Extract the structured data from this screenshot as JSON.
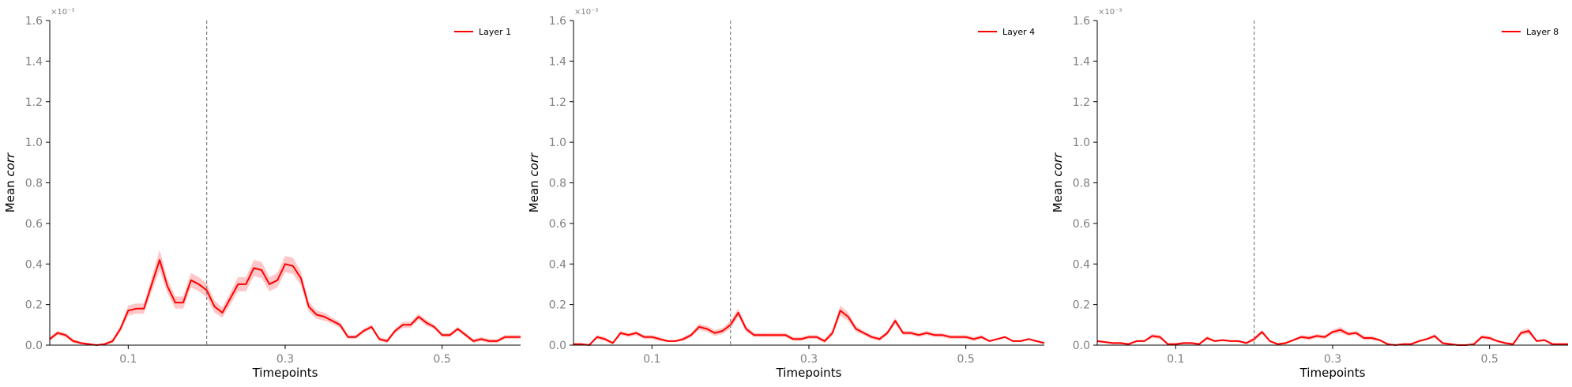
{
  "chart_data": [
    {
      "type": "line",
      "xlabel": "Timepoints",
      "ylabel": "Mean corr",
      "ylabel_prefix": "Mean ",
      "ylabel_italic": "corr",
      "offset_text": "×10⁻³",
      "ylim": [
        0,
        1.6
      ],
      "xlim": [
        0.0,
        0.6
      ],
      "yticks": [
        "0.0",
        "0.2",
        "0.4",
        "0.6",
        "0.8",
        "1.0",
        "1.2",
        "1.4",
        "1.6"
      ],
      "xticks": [
        "0.1",
        "0.3",
        "0.5"
      ],
      "xtick_values": [
        0.1,
        0.3,
        0.5
      ],
      "vline_x": 0.2,
      "legend_position": "top-right",
      "series": [
        {
          "name": "Layer 1",
          "color": "#ff0000",
          "x": [
            0.0,
            0.01,
            0.02,
            0.03,
            0.04,
            0.05,
            0.06,
            0.07,
            0.08,
            0.09,
            0.1,
            0.11,
            0.12,
            0.13,
            0.14,
            0.15,
            0.16,
            0.17,
            0.18,
            0.19,
            0.2,
            0.21,
            0.22,
            0.23,
            0.24,
            0.25,
            0.26,
            0.27,
            0.28,
            0.29,
            0.3,
            0.31,
            0.32,
            0.33,
            0.34,
            0.35,
            0.36,
            0.37,
            0.38,
            0.39,
            0.4,
            0.41,
            0.42,
            0.43,
            0.44,
            0.45,
            0.46,
            0.47,
            0.48,
            0.49,
            0.5,
            0.51,
            0.52,
            0.53,
            0.54,
            0.55,
            0.56,
            0.57,
            0.58,
            0.59,
            0.6
          ],
          "y": [
            0.03,
            0.06,
            0.05,
            0.02,
            0.01,
            0.005,
            0.0,
            0.005,
            0.02,
            0.08,
            0.17,
            0.18,
            0.18,
            0.3,
            0.42,
            0.29,
            0.21,
            0.21,
            0.32,
            0.3,
            0.27,
            0.19,
            0.16,
            0.23,
            0.3,
            0.3,
            0.38,
            0.37,
            0.3,
            0.32,
            0.4,
            0.39,
            0.33,
            0.19,
            0.15,
            0.14,
            0.12,
            0.1,
            0.04,
            0.04,
            0.07,
            0.09,
            0.03,
            0.02,
            0.07,
            0.1,
            0.1,
            0.14,
            0.11,
            0.09,
            0.05,
            0.05,
            0.08,
            0.05,
            0.02,
            0.03,
            0.02,
            0.02,
            0.04,
            0.04,
            0.04
          ],
          "err": [
            0.01,
            0.01,
            0.01,
            0.01,
            0.005,
            0.005,
            0.005,
            0.005,
            0.01,
            0.015,
            0.025,
            0.025,
            0.025,
            0.035,
            0.05,
            0.035,
            0.03,
            0.03,
            0.035,
            0.035,
            0.035,
            0.03,
            0.025,
            0.03,
            0.035,
            0.035,
            0.04,
            0.04,
            0.035,
            0.035,
            0.04,
            0.04,
            0.035,
            0.025,
            0.02,
            0.02,
            0.015,
            0.015,
            0.01,
            0.01,
            0.01,
            0.01,
            0.01,
            0.01,
            0.01,
            0.015,
            0.015,
            0.015,
            0.015,
            0.01,
            0.01,
            0.01,
            0.01,
            0.01,
            0.01,
            0.01,
            0.01,
            0.01,
            0.01,
            0.01,
            0.01
          ]
        }
      ]
    },
    {
      "type": "line",
      "xlabel": "Timepoints",
      "ylabel": "Mean corr",
      "ylabel_prefix": "Mean ",
      "ylabel_italic": "corr",
      "offset_text": "×10⁻³",
      "ylim": [
        0,
        1.6
      ],
      "xlim": [
        0.0,
        0.6
      ],
      "yticks": [
        "0.0",
        "0.2",
        "0.4",
        "0.6",
        "0.8",
        "1.0",
        "1.2",
        "1.4",
        "1.6"
      ],
      "xticks": [
        "0.1",
        "0.3",
        "0.5"
      ],
      "xtick_values": [
        0.1,
        0.3,
        0.5
      ],
      "vline_x": 0.2,
      "legend_position": "top-right",
      "series": [
        {
          "name": "Layer 4",
          "color": "#ff0000",
          "x": [
            0.0,
            0.01,
            0.02,
            0.03,
            0.04,
            0.05,
            0.06,
            0.07,
            0.08,
            0.09,
            0.1,
            0.11,
            0.12,
            0.13,
            0.14,
            0.15,
            0.16,
            0.17,
            0.18,
            0.19,
            0.2,
            0.21,
            0.22,
            0.23,
            0.24,
            0.25,
            0.26,
            0.27,
            0.28,
            0.29,
            0.3,
            0.31,
            0.32,
            0.33,
            0.34,
            0.35,
            0.36,
            0.37,
            0.38,
            0.39,
            0.4,
            0.41,
            0.42,
            0.43,
            0.44,
            0.45,
            0.46,
            0.47,
            0.48,
            0.49,
            0.5,
            0.51,
            0.52,
            0.53,
            0.54,
            0.55,
            0.56,
            0.57,
            0.58,
            0.59,
            0.6
          ],
          "y": [
            0.005,
            0.005,
            0.0,
            0.04,
            0.03,
            0.01,
            0.06,
            0.05,
            0.06,
            0.04,
            0.04,
            0.03,
            0.02,
            0.02,
            0.03,
            0.05,
            0.09,
            0.08,
            0.06,
            0.07,
            0.1,
            0.16,
            0.08,
            0.05,
            0.05,
            0.05,
            0.05,
            0.05,
            0.03,
            0.03,
            0.04,
            0.04,
            0.02,
            0.06,
            0.17,
            0.14,
            0.08,
            0.06,
            0.04,
            0.03,
            0.06,
            0.12,
            0.06,
            0.06,
            0.05,
            0.06,
            0.05,
            0.05,
            0.04,
            0.04,
            0.04,
            0.03,
            0.04,
            0.02,
            0.03,
            0.04,
            0.02,
            0.02,
            0.03,
            0.02,
            0.01
          ],
          "err": [
            0.005,
            0.005,
            0.005,
            0.01,
            0.01,
            0.005,
            0.01,
            0.01,
            0.01,
            0.01,
            0.01,
            0.01,
            0.005,
            0.005,
            0.01,
            0.01,
            0.015,
            0.015,
            0.015,
            0.015,
            0.02,
            0.02,
            0.015,
            0.01,
            0.01,
            0.01,
            0.01,
            0.01,
            0.01,
            0.01,
            0.01,
            0.01,
            0.01,
            0.015,
            0.025,
            0.02,
            0.015,
            0.01,
            0.01,
            0.01,
            0.01,
            0.015,
            0.01,
            0.01,
            0.01,
            0.01,
            0.01,
            0.01,
            0.01,
            0.01,
            0.01,
            0.01,
            0.01,
            0.005,
            0.005,
            0.005,
            0.005,
            0.005,
            0.005,
            0.005,
            0.005
          ]
        }
      ]
    },
    {
      "type": "line",
      "xlabel": "Timepoints",
      "ylabel": "Mean corr",
      "ylabel_prefix": "Mean ",
      "ylabel_italic": "corr",
      "offset_text": "×10⁻³",
      "ylim": [
        0,
        1.6
      ],
      "xlim": [
        0.0,
        0.6
      ],
      "yticks": [
        "0.0",
        "0.2",
        "0.4",
        "0.6",
        "0.8",
        "1.0",
        "1.2",
        "1.4",
        "1.6"
      ],
      "xticks": [
        "0.1",
        "0.3",
        "0.5"
      ],
      "xtick_values": [
        0.1,
        0.3,
        0.5
      ],
      "vline_x": 0.2,
      "legend_position": "top-right",
      "series": [
        {
          "name": "Layer 8",
          "color": "#ff0000",
          "x": [
            0.0,
            0.01,
            0.02,
            0.03,
            0.04,
            0.05,
            0.06,
            0.07,
            0.08,
            0.09,
            0.1,
            0.11,
            0.12,
            0.13,
            0.14,
            0.15,
            0.16,
            0.17,
            0.18,
            0.19,
            0.2,
            0.21,
            0.22,
            0.23,
            0.24,
            0.25,
            0.26,
            0.27,
            0.28,
            0.29,
            0.3,
            0.31,
            0.32,
            0.33,
            0.34,
            0.35,
            0.36,
            0.37,
            0.38,
            0.39,
            0.4,
            0.41,
            0.42,
            0.43,
            0.44,
            0.45,
            0.46,
            0.47,
            0.48,
            0.49,
            0.5,
            0.51,
            0.52,
            0.53,
            0.54,
            0.55,
            0.56,
            0.57,
            0.58,
            0.59,
            0.6
          ],
          "y": [
            0.02,
            0.015,
            0.01,
            0.01,
            0.005,
            0.02,
            0.02,
            0.045,
            0.04,
            0.005,
            0.005,
            0.01,
            0.01,
            0.005,
            0.035,
            0.02,
            0.025,
            0.02,
            0.02,
            0.01,
            0.03,
            0.065,
            0.02,
            0.005,
            0.01,
            0.025,
            0.04,
            0.035,
            0.045,
            0.04,
            0.065,
            0.075,
            0.055,
            0.06,
            0.035,
            0.035,
            0.025,
            0.005,
            0.0,
            0.005,
            0.005,
            0.02,
            0.03,
            0.045,
            0.01,
            0.005,
            0.0,
            0.0,
            0.005,
            0.04,
            0.035,
            0.02,
            0.01,
            0.005,
            0.06,
            0.07,
            0.02,
            0.025,
            0.005,
            0.005,
            0.005
          ],
          "err": [
            0.005,
            0.005,
            0.005,
            0.005,
            0.005,
            0.005,
            0.005,
            0.01,
            0.01,
            0.005,
            0.005,
            0.005,
            0.005,
            0.005,
            0.01,
            0.005,
            0.005,
            0.005,
            0.005,
            0.005,
            0.01,
            0.01,
            0.005,
            0.005,
            0.005,
            0.005,
            0.01,
            0.01,
            0.01,
            0.01,
            0.01,
            0.015,
            0.01,
            0.01,
            0.01,
            0.01,
            0.005,
            0.005,
            0.005,
            0.005,
            0.005,
            0.005,
            0.005,
            0.01,
            0.005,
            0.005,
            0.005,
            0.005,
            0.005,
            0.01,
            0.01,
            0.005,
            0.005,
            0.005,
            0.01,
            0.015,
            0.005,
            0.005,
            0.005,
            0.005,
            0.005
          ]
        }
      ]
    }
  ]
}
